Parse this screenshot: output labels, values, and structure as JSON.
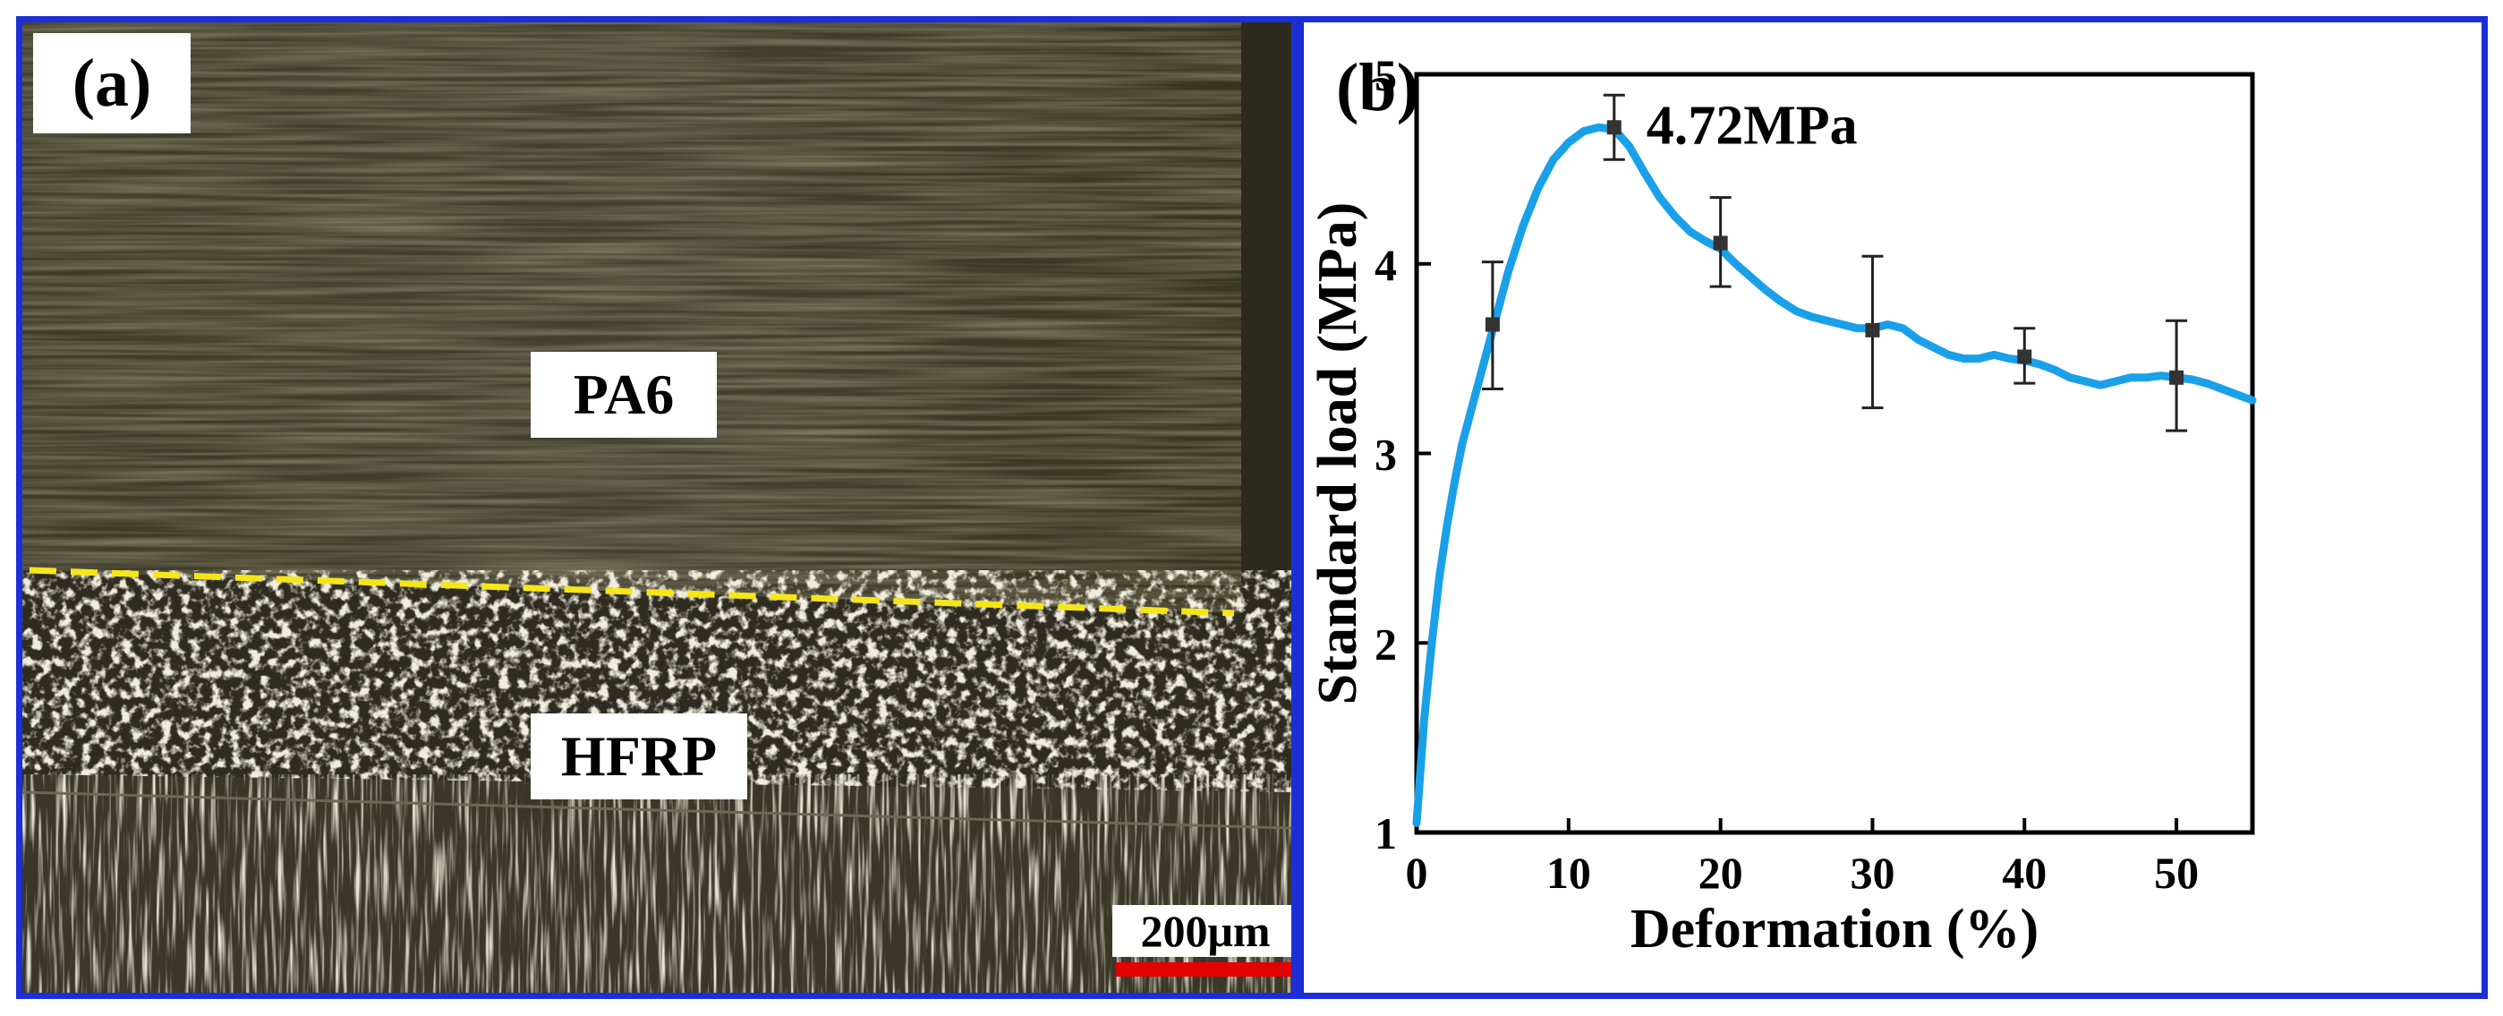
{
  "panel_a": {
    "tag": "(a)",
    "labels": {
      "upper": "PA6",
      "lower": "HFRP"
    },
    "scalebar": "200μm",
    "colors": {
      "interface_line": "#f5e61a",
      "scalebar": "#e50000",
      "border": "#1b2fd6"
    }
  },
  "chart_data": {
    "type": "line",
    "panel_tag": "(b)",
    "xlabel": "Deformation (%)",
    "ylabel": "Standard load (MPa)",
    "xlim": [
      0,
      55
    ],
    "ylim": [
      1,
      5
    ],
    "xticks": [
      0,
      10,
      20,
      30,
      40,
      50
    ],
    "yticks": [
      1,
      2,
      3,
      4,
      5
    ],
    "peak_annotation": "4.72MPa",
    "line_color": "#1aa0e8",
    "curve": {
      "x": [
        0,
        0.5,
        1,
        1.5,
        2,
        2.5,
        3,
        4,
        5,
        6,
        7,
        8,
        9,
        10,
        11,
        12,
        13,
        14,
        15,
        16,
        17,
        18,
        19,
        20,
        21,
        22,
        23,
        24,
        25,
        26,
        27,
        28,
        29,
        30,
        31,
        32,
        33,
        34,
        35,
        36,
        37,
        38,
        39,
        40,
        41,
        42,
        43,
        44,
        45,
        46,
        47,
        48,
        49,
        50,
        51,
        52,
        53,
        54,
        55
      ],
      "y": [
        1.05,
        1.6,
        2.0,
        2.35,
        2.62,
        2.85,
        3.05,
        3.35,
        3.65,
        3.95,
        4.2,
        4.4,
        4.55,
        4.64,
        4.7,
        4.72,
        4.71,
        4.62,
        4.48,
        4.35,
        4.25,
        4.17,
        4.12,
        4.08,
        4.0,
        3.93,
        3.86,
        3.8,
        3.75,
        3.72,
        3.7,
        3.68,
        3.66,
        3.66,
        3.68,
        3.66,
        3.6,
        3.56,
        3.52,
        3.5,
        3.5,
        3.52,
        3.5,
        3.49,
        3.47,
        3.44,
        3.4,
        3.38,
        3.36,
        3.38,
        3.4,
        3.4,
        3.41,
        3.4,
        3.39,
        3.37,
        3.34,
        3.31,
        3.28
      ]
    },
    "error_bars": [
      {
        "x": 5,
        "y": 3.68,
        "low": 3.34,
        "high": 4.01
      },
      {
        "x": 13,
        "y": 4.72,
        "low": 4.55,
        "high": 4.89
      },
      {
        "x": 20,
        "y": 4.11,
        "low": 3.88,
        "high": 4.35
      },
      {
        "x": 30,
        "y": 3.65,
        "low": 3.24,
        "high": 4.04
      },
      {
        "x": 40,
        "y": 3.51,
        "low": 3.37,
        "high": 3.66
      },
      {
        "x": 50,
        "y": 3.4,
        "low": 3.12,
        "high": 3.7
      }
    ]
  }
}
